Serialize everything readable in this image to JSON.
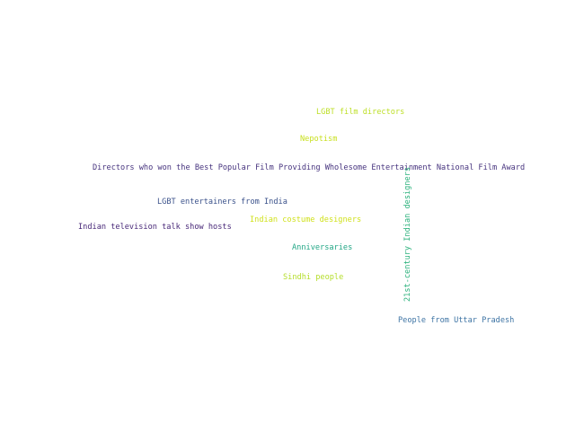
{
  "word_cloud": {
    "words": [
      {
        "id": "lgbt-film-directors",
        "text": "LGBT film directors",
        "color": "#bddf26"
      },
      {
        "id": "nepotism",
        "text": "Nepotism",
        "color": "#c8e020"
      },
      {
        "id": "directors-award",
        "text": "Directors who won the Best Popular Film Providing Wholesome Entertainment National Film Award",
        "color": "#46337e"
      },
      {
        "id": "lgbt-entertainers",
        "text": "LGBT entertainers from India",
        "color": "#3b528b"
      },
      {
        "id": "costume-designers",
        "text": "Indian costume designers",
        "color": "#d0e11c"
      },
      {
        "id": "tv-talk-hosts",
        "text": "Indian television talk show hosts",
        "color": "#482878"
      },
      {
        "id": "anniversaries",
        "text": "Anniversaries",
        "color": "#21a685"
      },
      {
        "id": "sindhi",
        "text": "Sindhi people",
        "color": "#b5de2b"
      },
      {
        "id": "uttar-pradesh",
        "text": "People from Uttar Pradesh",
        "color": "#3e74a4"
      },
      {
        "id": "21st-designers",
        "text": "21st-century Indian designers",
        "color": "#2db27d"
      }
    ]
  }
}
